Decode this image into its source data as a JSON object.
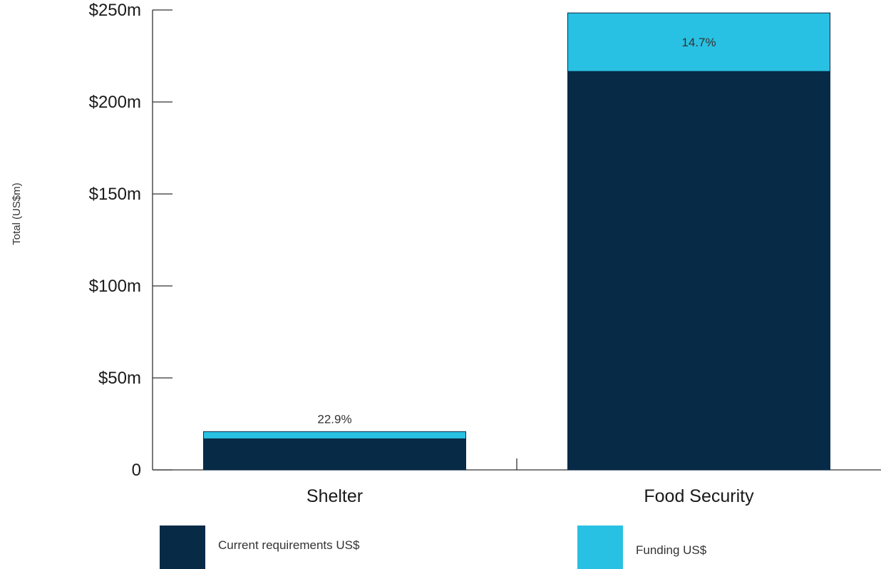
{
  "chart_data": {
    "type": "bar",
    "stacked": true,
    "categories": [
      "Shelter",
      "Food Security"
    ],
    "series": [
      {
        "name": "Current requirements US$",
        "values": [
          16.9,
          216.6
        ],
        "color": "#072a47"
      },
      {
        "name": "Funding US$",
        "values": [
          3.9,
          31.8
        ],
        "color": "#29c1e3"
      }
    ],
    "data_labels": [
      "22.9%",
      "14.7%"
    ],
    "ylabel": "Total (US$m)",
    "ylim": [
      0,
      250
    ],
    "yticks": [
      {
        "value": 0,
        "label": "0"
      },
      {
        "value": 50,
        "label": "$50m"
      },
      {
        "value": 100,
        "label": "$100m"
      },
      {
        "value": 150,
        "label": "$150m"
      },
      {
        "value": 200,
        "label": "$200m"
      },
      {
        "value": 250,
        "label": "$250m"
      }
    ],
    "grid": false,
    "legend_position": "bottom"
  }
}
